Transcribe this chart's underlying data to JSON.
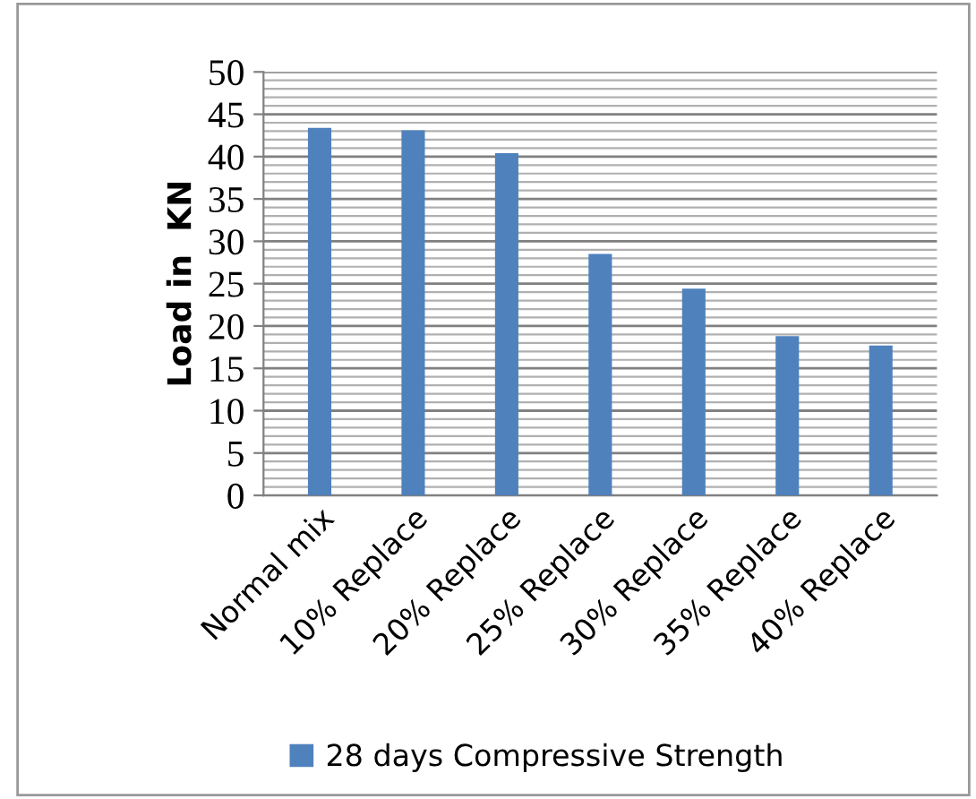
{
  "chart_data": {
    "type": "bar",
    "ylabel": "Load in  KN",
    "categories": [
      "Normal mix",
      "10% Replace",
      "20% Replace",
      "25% Replace",
      "30% Replace",
      "35% Replace",
      "40% Replace"
    ],
    "series": [
      {
        "name": "28 days Compressive Strength",
        "color": "#4f81bd",
        "values": [
          43.4,
          43.1,
          40.4,
          28.5,
          24.4,
          18.8,
          17.7
        ]
      }
    ],
    "ylim": [
      0,
      50
    ],
    "yticks": [
      0,
      5,
      10,
      15,
      20,
      25,
      30,
      35,
      40,
      45,
      50
    ],
    "grid": "y",
    "legend": "bottom"
  }
}
